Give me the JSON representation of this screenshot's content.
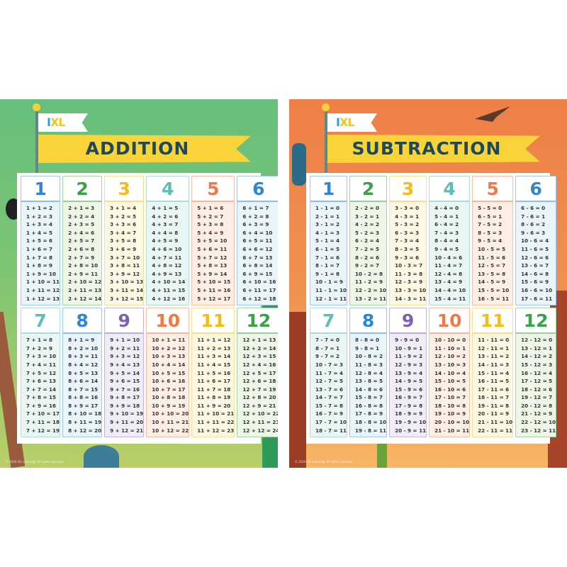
{
  "footer": "© 2024 IXL Learning. All rights reserved.",
  "logo": "IXL",
  "posters": [
    {
      "title": "ADDITION",
      "columns": [
        {
          "n": "1",
          "color": "#2f86d1",
          "tint": "#eaf4fb",
          "eqs": [
            "1 + 1 = 2",
            "1 + 2 = 3",
            "1 + 3 = 4",
            "1 + 4 = 5",
            "1 + 5 = 6",
            "1 + 6 = 7",
            "1 + 7 = 8",
            "1 + 8 = 9",
            "1 + 9 = 10",
            "1 + 10 = 11",
            "1 + 11 = 12",
            "1 + 12 = 13"
          ]
        },
        {
          "n": "2",
          "color": "#3aa346",
          "tint": "#eef6e8",
          "eqs": [
            "2 + 1 = 3",
            "2 + 2 = 4",
            "2 + 3 = 5",
            "2 + 4 = 6",
            "2 + 5 = 7",
            "2 + 6 = 8",
            "2 + 7 = 9",
            "2 + 8 = 10",
            "2 + 9 = 11",
            "2 + 10 = 12",
            "2 + 11 = 13",
            "2 + 12 = 14"
          ]
        },
        {
          "n": "3",
          "color": "#f2bd17",
          "tint": "#fdf8e4",
          "eqs": [
            "3 + 1 = 4",
            "3 + 2 = 5",
            "3 + 3 = 6",
            "3 + 4 = 7",
            "3 + 5 = 8",
            "3 + 6 = 9",
            "3 + 7 = 10",
            "3 + 8 = 11",
            "3 + 9 = 12",
            "3 + 10 = 13",
            "3 + 11 = 14",
            "3 + 12 = 15"
          ]
        },
        {
          "n": "4",
          "color": "#5bbfb5",
          "tint": "#e9f6f4",
          "eqs": [
            "4 + 1 = 5",
            "4 + 2 = 6",
            "4 + 3 = 7",
            "4 + 4 = 8",
            "4 + 5 = 9",
            "4 + 6 = 10",
            "4 + 7 = 11",
            "4 + 8 = 12",
            "4 + 9 = 13",
            "4 + 10 = 14",
            "4 + 11 = 15",
            "4 + 12 = 16"
          ]
        },
        {
          "n": "5",
          "color": "#ef7a45",
          "tint": "#fdeee6",
          "eqs": [
            "5 + 1 = 6",
            "5 + 2 = 7",
            "5 + 3 = 8",
            "5 + 4 = 9",
            "5 + 5 = 10",
            "5 + 6 = 11",
            "5 + 7 = 12",
            "5 + 8 = 13",
            "5 + 9 = 14",
            "5 + 10 = 15",
            "5 + 11 = 16",
            "5 + 12 = 17"
          ]
        },
        {
          "n": "6",
          "color": "#2f86d1",
          "tint": "#eaf4fb",
          "eqs": [
            "6 + 1 = 7",
            "6 + 2 = 8",
            "6 + 3 = 9",
            "6 + 4 = 10",
            "6 + 5 = 11",
            "6 + 6 = 12",
            "6 + 7 = 13",
            "6 + 8 = 14",
            "6 + 9 = 15",
            "6 + 10 = 16",
            "6 + 11 = 17",
            "6 + 12 = 18"
          ]
        },
        {
          "n": "7",
          "color": "#5bbfb5",
          "tint": "#e9f6f4",
          "eqs": [
            "7 + 1 = 8",
            "7 + 2 = 9",
            "7 + 3 = 10",
            "7 + 4 = 11",
            "7 + 5 = 12",
            "7 + 6 = 13",
            "7 + 7 = 14",
            "7 + 8 = 15",
            "7 + 9 = 16",
            "7 + 10 = 17",
            "7 + 11 = 18",
            "7 + 12 = 19"
          ]
        },
        {
          "n": "8",
          "color": "#2f86d1",
          "tint": "#eaf4fb",
          "eqs": [
            "8 + 1 = 9",
            "8 + 2 = 10",
            "8 + 3 = 11",
            "8 + 4 = 12",
            "8 + 5 = 13",
            "8 + 6 = 14",
            "8 + 7 = 15",
            "8 + 8 = 16",
            "8 + 9 = 17",
            "8 + 10 = 18",
            "8 + 11 = 19",
            "8 + 12 = 20"
          ]
        },
        {
          "n": "9",
          "color": "#7c5fb8",
          "tint": "#f1edf8",
          "eqs": [
            "9 + 1 = 10",
            "9 + 2 = 11",
            "9 + 3 = 12",
            "9 + 4 = 13",
            "9 + 5 = 14",
            "9 + 6 = 15",
            "9 + 7 = 16",
            "9 + 8 = 17",
            "9 + 9 = 18",
            "9 + 10 = 19",
            "9 + 11 = 20",
            "9 + 12 = 21"
          ]
        },
        {
          "n": "10",
          "color": "#ef7a45",
          "tint": "#fdeee6",
          "eqs": [
            "10 + 1 = 11",
            "10 + 2 = 12",
            "10 + 3 = 13",
            "10 + 4 = 14",
            "10 + 5 = 15",
            "10 + 6 = 16",
            "10 + 7 = 17",
            "10 + 8 = 18",
            "10 + 9 = 19",
            "10 + 10 = 20",
            "10 + 11 = 21",
            "10 + 12 = 22"
          ]
        },
        {
          "n": "11",
          "color": "#f2bd17",
          "tint": "#fdf8e4",
          "eqs": [
            "11 + 1 = 12",
            "11 + 2 = 13",
            "11 + 3 = 14",
            "11 + 4 = 15",
            "11 + 5 = 16",
            "11 + 6 = 17",
            "11 + 7 = 18",
            "11 + 8 = 19",
            "11 + 9 = 20",
            "11 + 10 = 21",
            "11 + 11 = 22",
            "11 + 12 = 23"
          ]
        },
        {
          "n": "12",
          "color": "#3aa346",
          "tint": "#eef6e8",
          "eqs": [
            "12 + 1 = 13",
            "12 + 2 = 14",
            "12 + 3 = 15",
            "12 + 4 = 16",
            "12 + 5 = 17",
            "12 + 6 = 18",
            "12 + 7 = 19",
            "12 + 8 = 20",
            "12 + 9 = 21",
            "12 + 10 = 22",
            "12 + 11 = 23",
            "12 + 12 = 24"
          ]
        }
      ]
    },
    {
      "title": "SUBTRACTION",
      "columns": [
        {
          "n": "1",
          "color": "#2f86d1",
          "tint": "#eaf4fb",
          "eqs": [
            "1 - 1 = 0",
            "2 - 1 = 1",
            "3 - 1 = 2",
            "4 - 1 = 3",
            "5 - 1 = 4",
            "6 - 1 = 5",
            "7 - 1 = 6",
            "8 - 1 = 7",
            "9 - 1 = 8",
            "10 - 1 = 9",
            "11 - 1 = 10",
            "12 - 1 = 11"
          ]
        },
        {
          "n": "2",
          "color": "#3aa346",
          "tint": "#eef6e8",
          "eqs": [
            "2 - 2 = 0",
            "3 - 2 = 1",
            "4 - 2 = 2",
            "5 - 2 = 3",
            "6 - 2 = 4",
            "7 - 2 = 5",
            "8 - 2 = 6",
            "9 - 2 = 7",
            "10 - 2 = 8",
            "11 - 2 = 9",
            "12 - 2 = 10",
            "13 - 2 = 11"
          ]
        },
        {
          "n": "3",
          "color": "#f2bd17",
          "tint": "#fdf8e4",
          "eqs": [
            "3 - 3 = 0",
            "4 - 3 = 1",
            "5 - 3 = 2",
            "6 - 3 = 3",
            "7 - 3 = 4",
            "8 - 3 = 5",
            "9 - 3 = 6",
            "10 - 3 = 7",
            "11 - 3 = 8",
            "12 - 3 = 9",
            "13 - 3 = 10",
            "14 - 3 = 11"
          ]
        },
        {
          "n": "4",
          "color": "#5bbfb5",
          "tint": "#e9f6f4",
          "eqs": [
            "4 - 4 = 0",
            "5 - 4 = 1",
            "6 - 4 = 2",
            "7 - 4 = 3",
            "8 - 4 = 4",
            "9 - 4 = 5",
            "10 - 4 = 6",
            "11 - 4 = 7",
            "12 - 4 = 8",
            "13 - 4 = 9",
            "14 - 4 = 10",
            "15 - 4 = 11"
          ]
        },
        {
          "n": "5",
          "color": "#ef7a45",
          "tint": "#fdeee6",
          "eqs": [
            "5 - 5 = 0",
            "6 - 5 = 1",
            "7 - 5 = 2",
            "8 - 5 = 3",
            "9 - 5 = 4",
            "10 - 5 = 5",
            "11 - 5 = 6",
            "12 - 5 = 7",
            "13 - 5 = 8",
            "14 - 5 = 9",
            "15 - 5 = 10",
            "16 - 5 = 11"
          ]
        },
        {
          "n": "6",
          "color": "#2f86d1",
          "tint": "#eaf4fb",
          "eqs": [
            "6 - 6 = 0",
            "7 - 6 = 1",
            "8 - 6 = 2",
            "9 - 6 = 3",
            "10 - 6 = 4",
            "11 - 6 = 5",
            "12 - 6 = 6",
            "13 - 6 = 7",
            "14 - 6 = 8",
            "15 - 6 = 9",
            "16 - 6 = 10",
            "17 - 6 = 11"
          ]
        },
        {
          "n": "7",
          "color": "#5bbfb5",
          "tint": "#e9f6f4",
          "eqs": [
            "7 - 7 = 0",
            "8 - 7 = 1",
            "9 - 7 = 2",
            "10 - 7 = 3",
            "11 - 7 = 4",
            "12 - 7 = 5",
            "13 - 7 = 6",
            "14 - 7 = 7",
            "15 - 7 = 8",
            "16 - 7 = 9",
            "17 - 7 = 10",
            "18 - 7 = 11"
          ]
        },
        {
          "n": "8",
          "color": "#2f86d1",
          "tint": "#eaf4fb",
          "eqs": [
            "8 - 8 = 0",
            "9 - 8 = 1",
            "10 - 8 = 2",
            "11 - 8 = 3",
            "12 - 8 = 4",
            "13 - 8 = 5",
            "14 - 8 = 6",
            "15 - 8 = 7",
            "16 - 8 = 8",
            "17 - 8 = 9",
            "18 - 8 = 10",
            "19 - 8 = 11"
          ]
        },
        {
          "n": "9",
          "color": "#7c5fb8",
          "tint": "#f1edf8",
          "eqs": [
            "9 - 9 = 0",
            "10 - 9 = 1",
            "11 - 9 = 2",
            "12 - 9 = 3",
            "13 - 9 = 4",
            "14 - 9 = 5",
            "15 - 9 = 6",
            "16 - 9 = 7",
            "17 - 9 = 8",
            "18 - 9 = 9",
            "19 - 9 = 10",
            "20 - 9 = 11"
          ]
        },
        {
          "n": "10",
          "color": "#ef7a45",
          "tint": "#fdeee6",
          "eqs": [
            "10 - 10 = 0",
            "11 - 10 = 1",
            "12 - 10 = 2",
            "13 - 10 = 3",
            "14 - 10 = 4",
            "15 - 10 = 5",
            "16 - 10 = 6",
            "17 - 10 = 7",
            "18 - 10 = 8",
            "19 - 10 = 9",
            "20 - 10 = 10",
            "21 - 10 = 11"
          ]
        },
        {
          "n": "11",
          "color": "#f2bd17",
          "tint": "#fdf8e4",
          "eqs": [
            "11 - 11 = 0",
            "12 - 11 = 1",
            "13 - 11 = 2",
            "14 - 11 = 3",
            "15 - 11 = 4",
            "16 - 11 = 5",
            "17 - 11 = 6",
            "18 - 11 = 7",
            "19 - 11 = 8",
            "20 - 11 = 9",
            "21 - 11 = 10",
            "22 - 11 = 11"
          ]
        },
        {
          "n": "12",
          "color": "#3aa346",
          "tint": "#eef6e8",
          "eqs": [
            "12 - 12 = 0",
            "13 - 12 = 1",
            "14 - 12 = 2",
            "15 - 12 = 3",
            "16 - 12 = 4",
            "17 - 12 = 5",
            "18 - 12 = 6",
            "19 - 12 = 7",
            "20 - 12 = 8",
            "21 - 12 = 9",
            "22 - 12 = 10",
            "23 - 12 = 11"
          ]
        }
      ]
    }
  ]
}
